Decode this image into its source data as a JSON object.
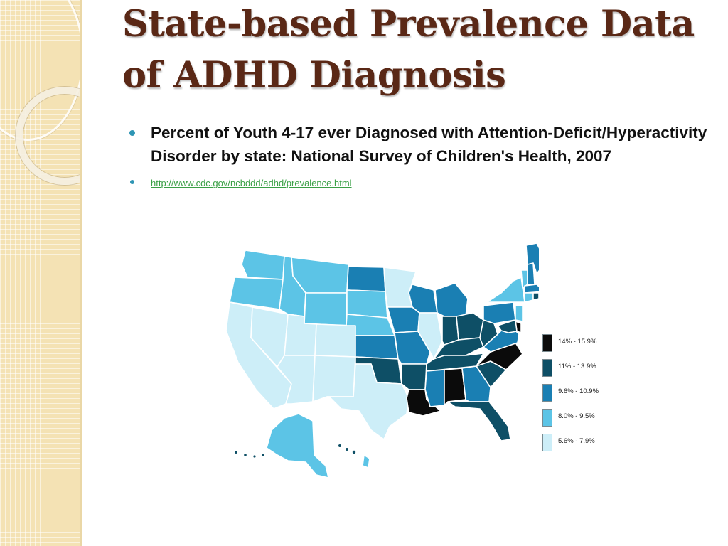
{
  "slide": {
    "title": "State-based Prevalence Data of ADHD Diagnosis",
    "bullets": [
      {
        "text": "Percent of Youth 4-17 ever Diagnosed with Attention-Deficit/Hyperactivity Disorder by state: National Survey of Children's Health, 2007"
      },
      {
        "text": "http://www.cdc.gov/ncbddd/adhd/prevalence.html"
      }
    ],
    "accent_color": "#5a2816",
    "bullet_color": "#2e95b4",
    "link_color": "#3aa046"
  },
  "map": {
    "legend": [
      {
        "label": "14% - 15.9%",
        "color": "#0b0b0b"
      },
      {
        "label": "11% - 13.9%",
        "color": "#0e4f66"
      },
      {
        "label": "9.6% - 10.9%",
        "color": "#1a7fb3"
      },
      {
        "label": "8.0% - 9.5%",
        "color": "#5cc4e6"
      },
      {
        "label": "5.6% - 7.9%",
        "color": "#cdeef8"
      }
    ],
    "state_classes": {
      "WA": 3,
      "OR": 3,
      "CA": 4,
      "NV": 4,
      "ID": 3,
      "MT": 3,
      "WY": 3,
      "UT": 4,
      "AZ": 4,
      "CO": 4,
      "NM": 4,
      "ND": 2,
      "SD": 3,
      "NE": 3,
      "KS": 2,
      "OK": 1,
      "TX": 4,
      "MN": 4,
      "IA": 2,
      "MO": 2,
      "AR": 1,
      "LA": 0,
      "WI": 2,
      "IL": 4,
      "MI": 2,
      "IN": 1,
      "OH": 1,
      "KY": 1,
      "TN": 1,
      "MS": 2,
      "AL": 0,
      "GA": 2,
      "FL": 1,
      "SC": 1,
      "NC": 0,
      "VA": 2,
      "WV": 1,
      "PA": 2,
      "NY": 3,
      "VT": 3,
      "NH": 2,
      "ME": 2,
      "MA": 2,
      "RI": 1,
      "CT": 3,
      "NJ": 3,
      "DE": 0,
      "MD": 1,
      "AK": 3,
      "HI": 3
    }
  }
}
